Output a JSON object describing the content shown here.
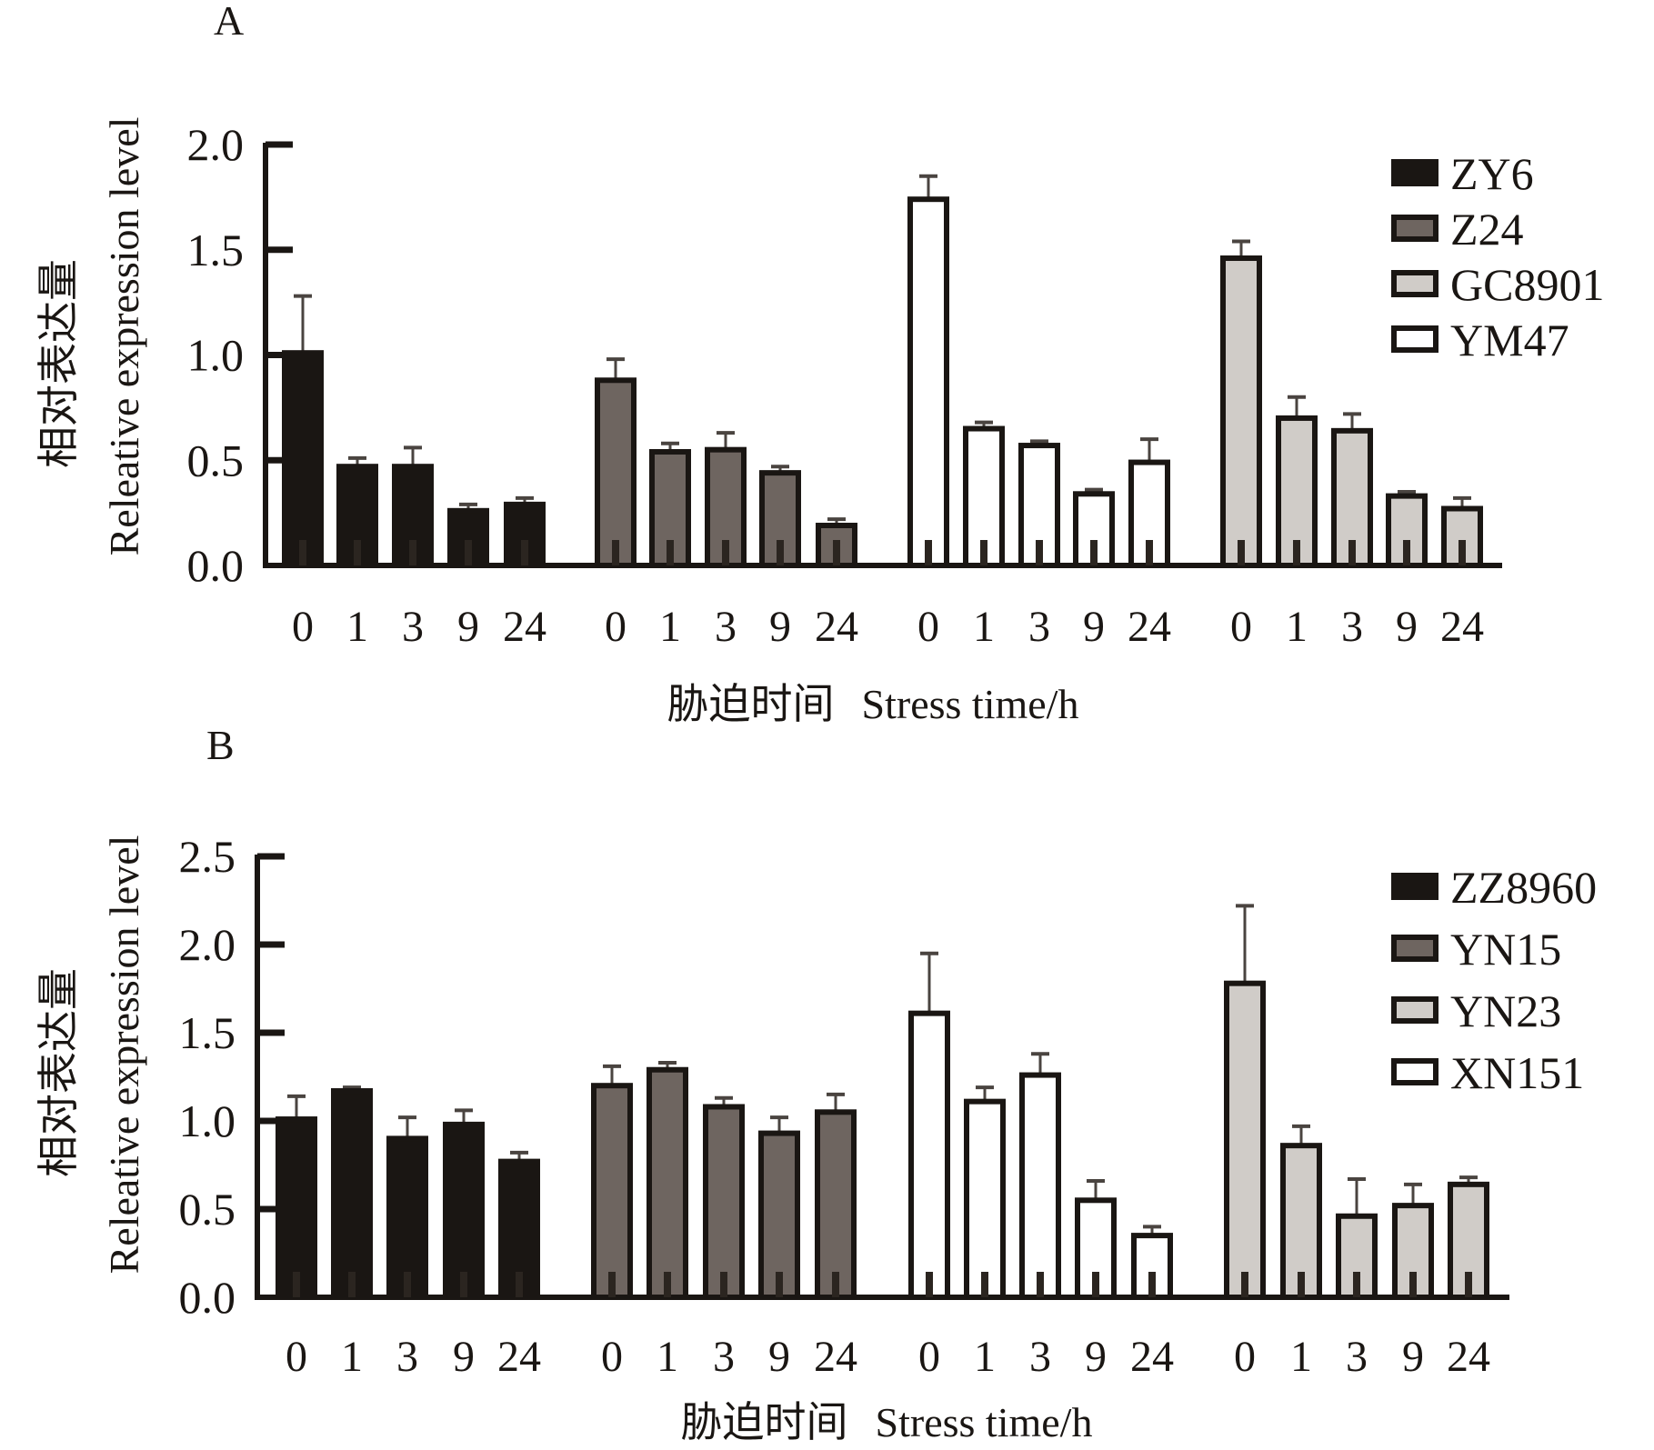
{
  "chart_data": [
    {
      "type": "bar",
      "panel_label": "A",
      "ylabel_cn": "相对表达量",
      "ylabel": "Releative expression level",
      "xlabel_cn": "胁迫时间",
      "xlabel": "Stress time/h",
      "ylim": [
        0,
        2.0
      ],
      "yticks": [
        "0.0",
        "0.5",
        "1.0",
        "1.5",
        "2.0"
      ],
      "ytick_values": [
        0,
        0.5,
        1.0,
        1.5,
        2.0
      ],
      "categories": [
        "0",
        "1",
        "3",
        "9",
        "24"
      ],
      "legend_position": "top-right",
      "legend": [
        {
          "name": "ZY6",
          "fill": "#1a1613"
        },
        {
          "name": "Z24",
          "fill": "#6e6560"
        },
        {
          "name": "GC8901",
          "fill": "#d0ccc8"
        },
        {
          "name": "YM47",
          "fill": "#ffffff"
        }
      ],
      "series": [
        {
          "name": "ZY6",
          "fill": "#1a1613",
          "values": [
            1.01,
            0.47,
            0.47,
            0.26,
            0.29
          ],
          "errors_upper": [
            1.28,
            0.51,
            0.56,
            0.29,
            0.32
          ]
        },
        {
          "name": "Z24",
          "fill": "#6e6560",
          "values": [
            0.88,
            0.54,
            0.55,
            0.44,
            0.19
          ],
          "errors_upper": [
            0.98,
            0.58,
            0.63,
            0.47,
            0.22
          ]
        },
        {
          "name": "YM47",
          "fill": "#ffffff",
          "values": [
            1.74,
            0.65,
            0.57,
            0.34,
            0.49
          ],
          "errors_upper": [
            1.85,
            0.68,
            0.59,
            0.36,
            0.6
          ]
        },
        {
          "name": "GC8901",
          "fill": "#d0ccc8",
          "values": [
            1.46,
            0.7,
            0.64,
            0.33,
            0.27
          ],
          "errors_upper": [
            1.54,
            0.8,
            0.72,
            0.35,
            0.32
          ]
        }
      ]
    },
    {
      "type": "bar",
      "panel_label": "B",
      "ylabel_cn": "相对表达量",
      "ylabel": "Releative expression level",
      "xlabel_cn": "胁迫时间",
      "xlabel": "Stress time/h",
      "ylim": [
        0,
        2.5
      ],
      "yticks": [
        "0.0",
        "0.5",
        "1.0",
        "1.5",
        "2.0",
        "2.5"
      ],
      "ytick_values": [
        0,
        0.5,
        1.0,
        1.5,
        2.0,
        2.5
      ],
      "categories": [
        "0",
        "1",
        "3",
        "9",
        "24"
      ],
      "legend_position": "top-right",
      "legend": [
        {
          "name": "ZZ8960",
          "fill": "#1a1613"
        },
        {
          "name": "YN15",
          "fill": "#6e6560"
        },
        {
          "name": "YN23",
          "fill": "#d0ccc8"
        },
        {
          "name": "XN151",
          "fill": "#ffffff"
        }
      ],
      "series": [
        {
          "name": "ZZ8960",
          "fill": "#1a1613",
          "values": [
            1.01,
            1.17,
            0.9,
            0.98,
            0.77
          ],
          "errors_upper": [
            1.14,
            1.19,
            1.02,
            1.06,
            0.82
          ]
        },
        {
          "name": "YN15",
          "fill": "#6e6560",
          "values": [
            1.2,
            1.29,
            1.08,
            0.93,
            1.05
          ],
          "errors_upper": [
            1.31,
            1.33,
            1.13,
            1.02,
            1.15
          ]
        },
        {
          "name": "XN151",
          "fill": "#ffffff",
          "values": [
            1.61,
            1.11,
            1.26,
            0.55,
            0.35
          ],
          "errors_upper": [
            1.95,
            1.19,
            1.38,
            0.66,
            0.4
          ]
        },
        {
          "name": "YN23",
          "fill": "#d0ccc8",
          "values": [
            1.78,
            0.86,
            0.46,
            0.52,
            0.64
          ],
          "errors_upper": [
            2.22,
            0.97,
            0.67,
            0.64,
            0.68
          ]
        }
      ]
    }
  ]
}
